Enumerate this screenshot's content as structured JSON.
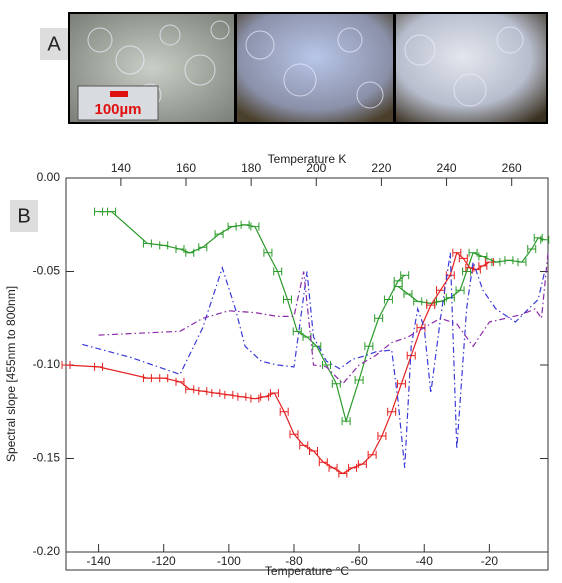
{
  "panels": [
    "A",
    "B"
  ],
  "scale_bar": "100µm",
  "chart_data": {
    "type": "line",
    "xlabel": "Temperature °C",
    "x2label": "Temperature K",
    "ylabel": "Spectral slope [455nm to 800nm]",
    "xlim": [
      -150,
      -2
    ],
    "xticks": [
      -140,
      -120,
      -100,
      -80,
      -60,
      -40,
      -20
    ],
    "x2lim": [
      123.15,
      271.15
    ],
    "x2ticks": [
      140,
      160,
      180,
      200,
      220,
      240,
      260
    ],
    "ylim": [
      -0.2,
      0
    ],
    "yticks": [
      {
        "value": -0.2,
        "label": "-0.20"
      },
      -0.15,
      {
        "value": -0.1,
        "label": "-0.10"
      },
      -0.05,
      {
        "value": 0,
        "label": "0.00"
      }
    ],
    "series": [
      {
        "color": "#2a9a2a",
        "style": "solid",
        "markers": true,
        "x": [
          -140,
          -136,
          -125,
          -120,
          -115,
          -112,
          -108,
          -103,
          -99,
          -95,
          -92,
          -88,
          -85,
          -82,
          -79,
          -76,
          -73,
          -70,
          -67,
          -64,
          -60,
          -57,
          -54,
          -51,
          -48,
          -46,
          null,
          -48,
          -45,
          -42,
          -38,
          -35,
          -32,
          -29,
          -27,
          -25,
          -22,
          -18,
          -14,
          -10,
          -7,
          -5,
          -3
        ],
        "values": [
          -0.018,
          -0.018,
          -0.035,
          -0.036,
          -0.038,
          -0.04,
          -0.037,
          -0.03,
          -0.026,
          -0.025,
          -0.026,
          -0.04,
          -0.05,
          -0.065,
          -0.082,
          -0.085,
          -0.09,
          -0.1,
          -0.11,
          -0.13,
          -0.108,
          -0.09,
          -0.075,
          -0.065,
          -0.055,
          -0.052,
          null,
          -0.058,
          -0.062,
          -0.066,
          -0.067,
          -0.066,
          -0.064,
          -0.06,
          -0.05,
          -0.04,
          -0.042,
          -0.045,
          -0.044,
          -0.045,
          -0.038,
          -0.032,
          -0.033
        ]
      },
      {
        "color": "#e52020",
        "style": "solid",
        "markers": true,
        "x": [
          -150,
          -140,
          -125,
          -120,
          -115,
          -112,
          -108,
          -104,
          -100,
          -96,
          -92,
          -89,
          -86,
          -83,
          -80,
          -77,
          -74,
          -71,
          -68,
          -65,
          -62,
          -59,
          -56,
          -53,
          -50,
          -47,
          -44,
          -41,
          -38,
          -35,
          -32,
          -30,
          -28,
          -26,
          -24,
          -22,
          -20
        ],
        "values": [
          -0.1,
          -0.101,
          -0.107,
          -0.107,
          -0.109,
          -0.113,
          -0.114,
          -0.115,
          -0.116,
          -0.117,
          -0.118,
          -0.117,
          -0.115,
          -0.125,
          -0.137,
          -0.143,
          -0.146,
          -0.152,
          -0.155,
          -0.158,
          -0.155,
          -0.153,
          -0.148,
          -0.138,
          -0.125,
          -0.11,
          -0.095,
          -0.08,
          -0.068,
          -0.06,
          -0.052,
          -0.04,
          -0.043,
          -0.048,
          -0.049,
          -0.047,
          -0.045
        ]
      },
      {
        "color": "#3a3ad8",
        "style": "dashdot",
        "markers": false,
        "x": [
          -145,
          -130,
          -115,
          -108,
          -102,
          -98,
          -95,
          -90,
          -85,
          -80,
          -76,
          -74,
          -70,
          -66,
          -62,
          -58,
          -55,
          -50,
          -48,
          -46,
          -44,
          -42,
          -40,
          -38,
          -35,
          -32,
          -30,
          -27,
          -25,
          -22,
          -18,
          -12,
          -8,
          -5,
          -3
        ],
        "values": [
          -0.089,
          -0.096,
          -0.105,
          -0.08,
          -0.048,
          -0.07,
          -0.09,
          -0.098,
          -0.1,
          -0.101,
          -0.05,
          -0.085,
          -0.098,
          -0.102,
          -0.097,
          -0.095,
          -0.093,
          -0.092,
          -0.12,
          -0.155,
          -0.09,
          -0.07,
          -0.08,
          -0.115,
          -0.075,
          -0.04,
          -0.145,
          -0.07,
          -0.045,
          -0.06,
          -0.07,
          -0.077,
          -0.07,
          -0.065,
          -0.05
        ]
      },
      {
        "color": "#8a2aa8",
        "style": "dashdot",
        "markers": false,
        "x": [
          -140,
          -115,
          -108,
          -100,
          -92,
          -85,
          -80,
          -77,
          -74,
          -70,
          -65,
          -60,
          -55,
          -50,
          -45,
          -40,
          -35,
          -30,
          -25,
          -20,
          -15,
          -10,
          -6,
          -4,
          -2
        ],
        "values": [
          -0.084,
          -0.082,
          -0.075,
          -0.071,
          -0.072,
          -0.074,
          -0.074,
          -0.05,
          -0.1,
          -0.101,
          -0.11,
          -0.1,
          -0.095,
          -0.088,
          -0.085,
          -0.08,
          -0.075,
          -0.078,
          -0.09,
          -0.077,
          -0.075,
          -0.073,
          -0.07,
          -0.075,
          -0.04
        ]
      }
    ]
  }
}
